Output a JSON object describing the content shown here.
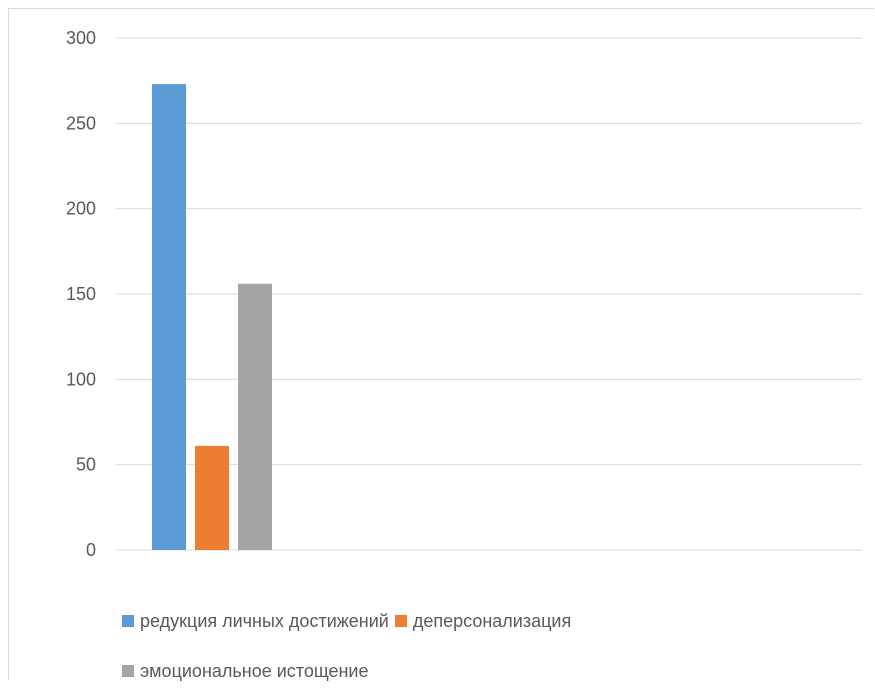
{
  "chart_data": {
    "type": "bar",
    "categories": [
      ""
    ],
    "series": [
      {
        "name": "редукция личных достижений",
        "values": [
          273
        ],
        "color": "#5b9bd5"
      },
      {
        "name": "деперсонализация",
        "values": [
          61
        ],
        "color": "#ed7d31"
      },
      {
        "name": "эмоциональное истощение",
        "values": [
          156
        ],
        "color": "#a5a5a5"
      }
    ],
    "title": "",
    "xlabel": "",
    "ylabel": "",
    "ylim": [
      0,
      300
    ],
    "yticks": [
      0,
      50,
      100,
      150,
      200,
      250,
      300
    ],
    "grid": true,
    "legend_position": "bottom"
  }
}
